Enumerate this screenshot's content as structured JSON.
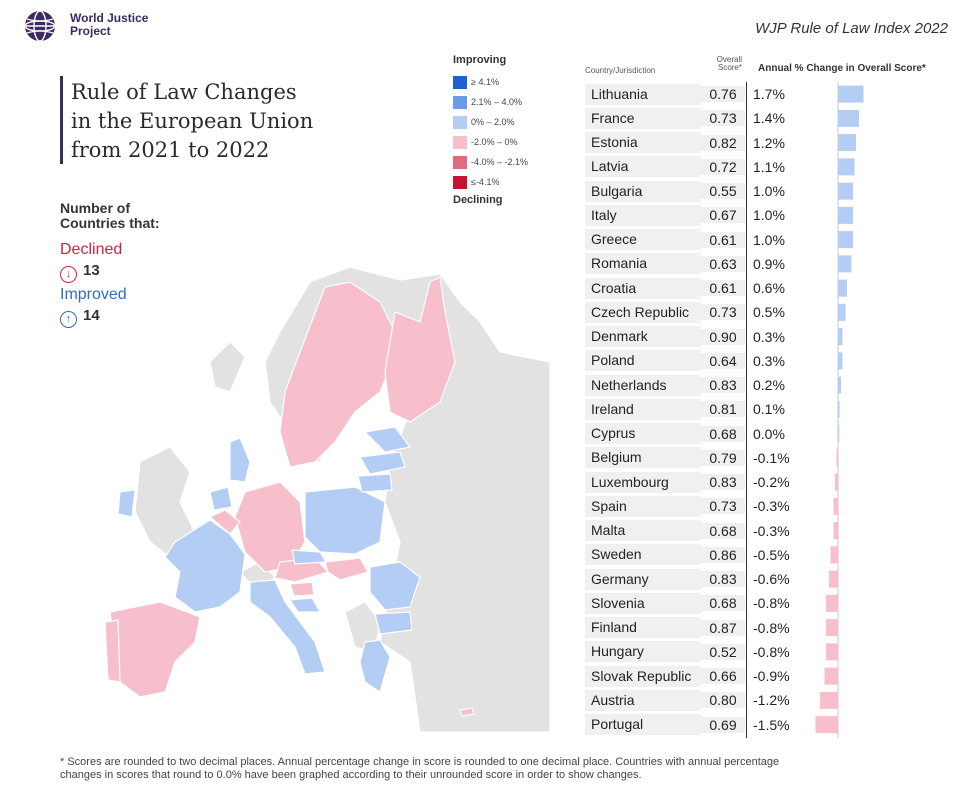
{
  "header": {
    "org_line1": "World Justice",
    "org_line2": "Project",
    "report_title": "WJP Rule of Law Index 2022"
  },
  "title": {
    "line1": "Rule of Law Changes",
    "line2": "in the European Union",
    "line3": "from 2021 to 2022"
  },
  "counts": {
    "heading_line1": "Number of",
    "heading_line2": "Countries that:",
    "declined_label": "Declined",
    "declined_count": "13",
    "improved_label": "Improved",
    "improved_count": "14"
  },
  "legend": {
    "top_label": "Improving",
    "bottom_label": "Declining",
    "items": [
      {
        "label": "≥ 4.1%",
        "color": "#1f5fce"
      },
      {
        "label": "2.1% – 4.0%",
        "color": "#6a9cea"
      },
      {
        "label": "0% – 2.0%",
        "color": "#b3cdf5"
      },
      {
        "label": "-2.0% – 0%",
        "color": "#f6bfcb"
      },
      {
        "label": "-4.0% – -2.1%",
        "color": "#e26a7e"
      },
      {
        "label": "≤-4.1%",
        "color": "#c5142f"
      }
    ]
  },
  "columns": {
    "country": "Country/Jurisdiction",
    "score_line1": "Overall",
    "score_line2": "Score*",
    "change": "Annual % Change in Overall Score*"
  },
  "chart_data": {
    "type": "bar",
    "orientation": "horizontal",
    "categories": [
      "Lithuania",
      "France",
      "Estonia",
      "Latvia",
      "Bulgaria",
      "Italy",
      "Greece",
      "Romania",
      "Croatia",
      "Czech Republic",
      "Denmark",
      "Poland",
      "Netherlands",
      "Ireland",
      "Cyprus",
      "Belgium",
      "Luxembourg",
      "Spain",
      "Malta",
      "Sweden",
      "Germany",
      "Slovenia",
      "Finland",
      "Hungary",
      "Slovak Republic",
      "Austria",
      "Portugal"
    ],
    "scores": [
      "0.76",
      "0.73",
      "0.82",
      "0.72",
      "0.55",
      "0.67",
      "0.61",
      "0.63",
      "0.61",
      "0.73",
      "0.90",
      "0.64",
      "0.83",
      "0.81",
      "0.68",
      "0.79",
      "0.83",
      "0.73",
      "0.68",
      "0.86",
      "0.83",
      "0.68",
      "0.87",
      "0.52",
      "0.66",
      "0.80",
      "0.69"
    ],
    "change_labels": [
      "1.7%",
      "1.4%",
      "1.2%",
      "1.1%",
      "1.0%",
      "1.0%",
      "1.0%",
      "0.9%",
      "0.6%",
      "0.5%",
      "0.3%",
      "0.3%",
      "0.2%",
      "0.1%",
      "0.0%",
      "-0.1%",
      "-0.2%",
      "-0.3%",
      "-0.3%",
      "-0.5%",
      "-0.6%",
      "-0.8%",
      "-0.8%",
      "-0.8%",
      "-0.9%",
      "-1.2%",
      "-1.5%"
    ],
    "values": [
      1.7,
      1.4,
      1.2,
      1.1,
      1.0,
      1.0,
      1.0,
      0.9,
      0.6,
      0.5,
      0.3,
      0.3,
      0.2,
      0.1,
      0.02,
      -0.1,
      -0.2,
      -0.3,
      -0.3,
      -0.5,
      -0.6,
      -0.8,
      -0.8,
      -0.8,
      -0.9,
      -1.2,
      -1.5
    ],
    "colors": {
      "positive": "#b3cdf5",
      "negative": "#f6bfcb"
    }
  },
  "map": {
    "colors": {
      "improving": "#b3cdf5",
      "declining": "#f6bfcb",
      "non_eu": "#e2e2e2",
      "border": "#ffffff"
    }
  },
  "footnote": {
    "line1": "* Scores are rounded to two decimal places. Annual percentage change in score is rounded to one decimal place. Countries with annual percentage",
    "line2": "changes in scores that round to 0.0% have been graphed according to their unrounded score in order to show changes."
  }
}
